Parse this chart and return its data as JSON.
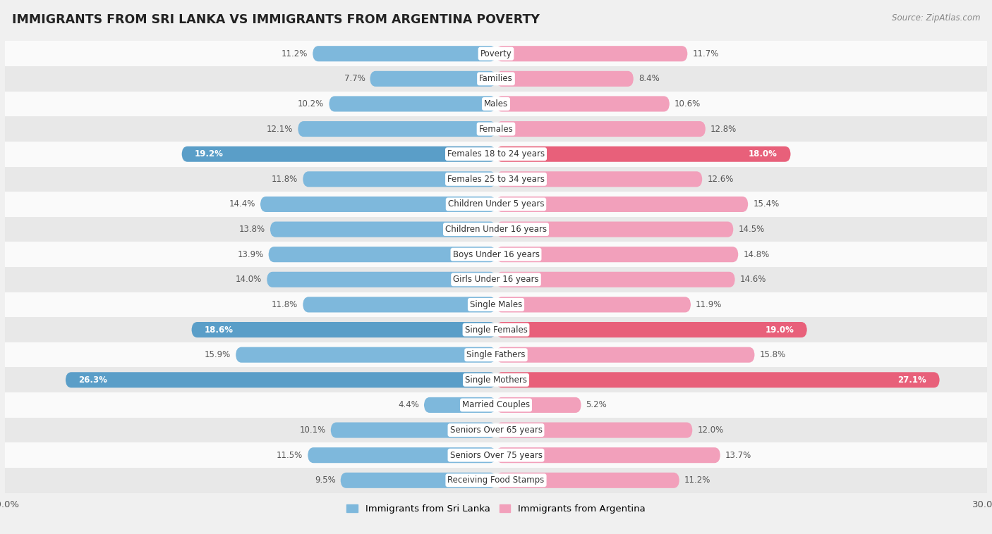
{
  "title": "IMMIGRANTS FROM SRI LANKA VS IMMIGRANTS FROM ARGENTINA POVERTY",
  "source": "Source: ZipAtlas.com",
  "categories": [
    "Poverty",
    "Families",
    "Males",
    "Females",
    "Females 18 to 24 years",
    "Females 25 to 34 years",
    "Children Under 5 years",
    "Children Under 16 years",
    "Boys Under 16 years",
    "Girls Under 16 years",
    "Single Males",
    "Single Females",
    "Single Fathers",
    "Single Mothers",
    "Married Couples",
    "Seniors Over 65 years",
    "Seniors Over 75 years",
    "Receiving Food Stamps"
  ],
  "sri_lanka_values": [
    11.2,
    7.7,
    10.2,
    12.1,
    19.2,
    11.8,
    14.4,
    13.8,
    13.9,
    14.0,
    11.8,
    18.6,
    15.9,
    26.3,
    4.4,
    10.1,
    11.5,
    9.5
  ],
  "argentina_values": [
    11.7,
    8.4,
    10.6,
    12.8,
    18.0,
    12.6,
    15.4,
    14.5,
    14.8,
    14.6,
    11.9,
    19.0,
    15.8,
    27.1,
    5.2,
    12.0,
    13.7,
    11.2
  ],
  "sri_lanka_color": "#7EB8DC",
  "argentina_color": "#F2A0BB",
  "sri_lanka_highlight_color": "#5A9EC8",
  "argentina_highlight_color": "#E8607A",
  "highlight_rows": [
    4,
    11,
    13
  ],
  "background_color": "#f0f0f0",
  "row_color_even": "#fafafa",
  "row_color_odd": "#e8e8e8",
  "xlim": 30.0,
  "legend_label_left": "Immigrants from Sri Lanka",
  "legend_label_right": "Immigrants from Argentina"
}
